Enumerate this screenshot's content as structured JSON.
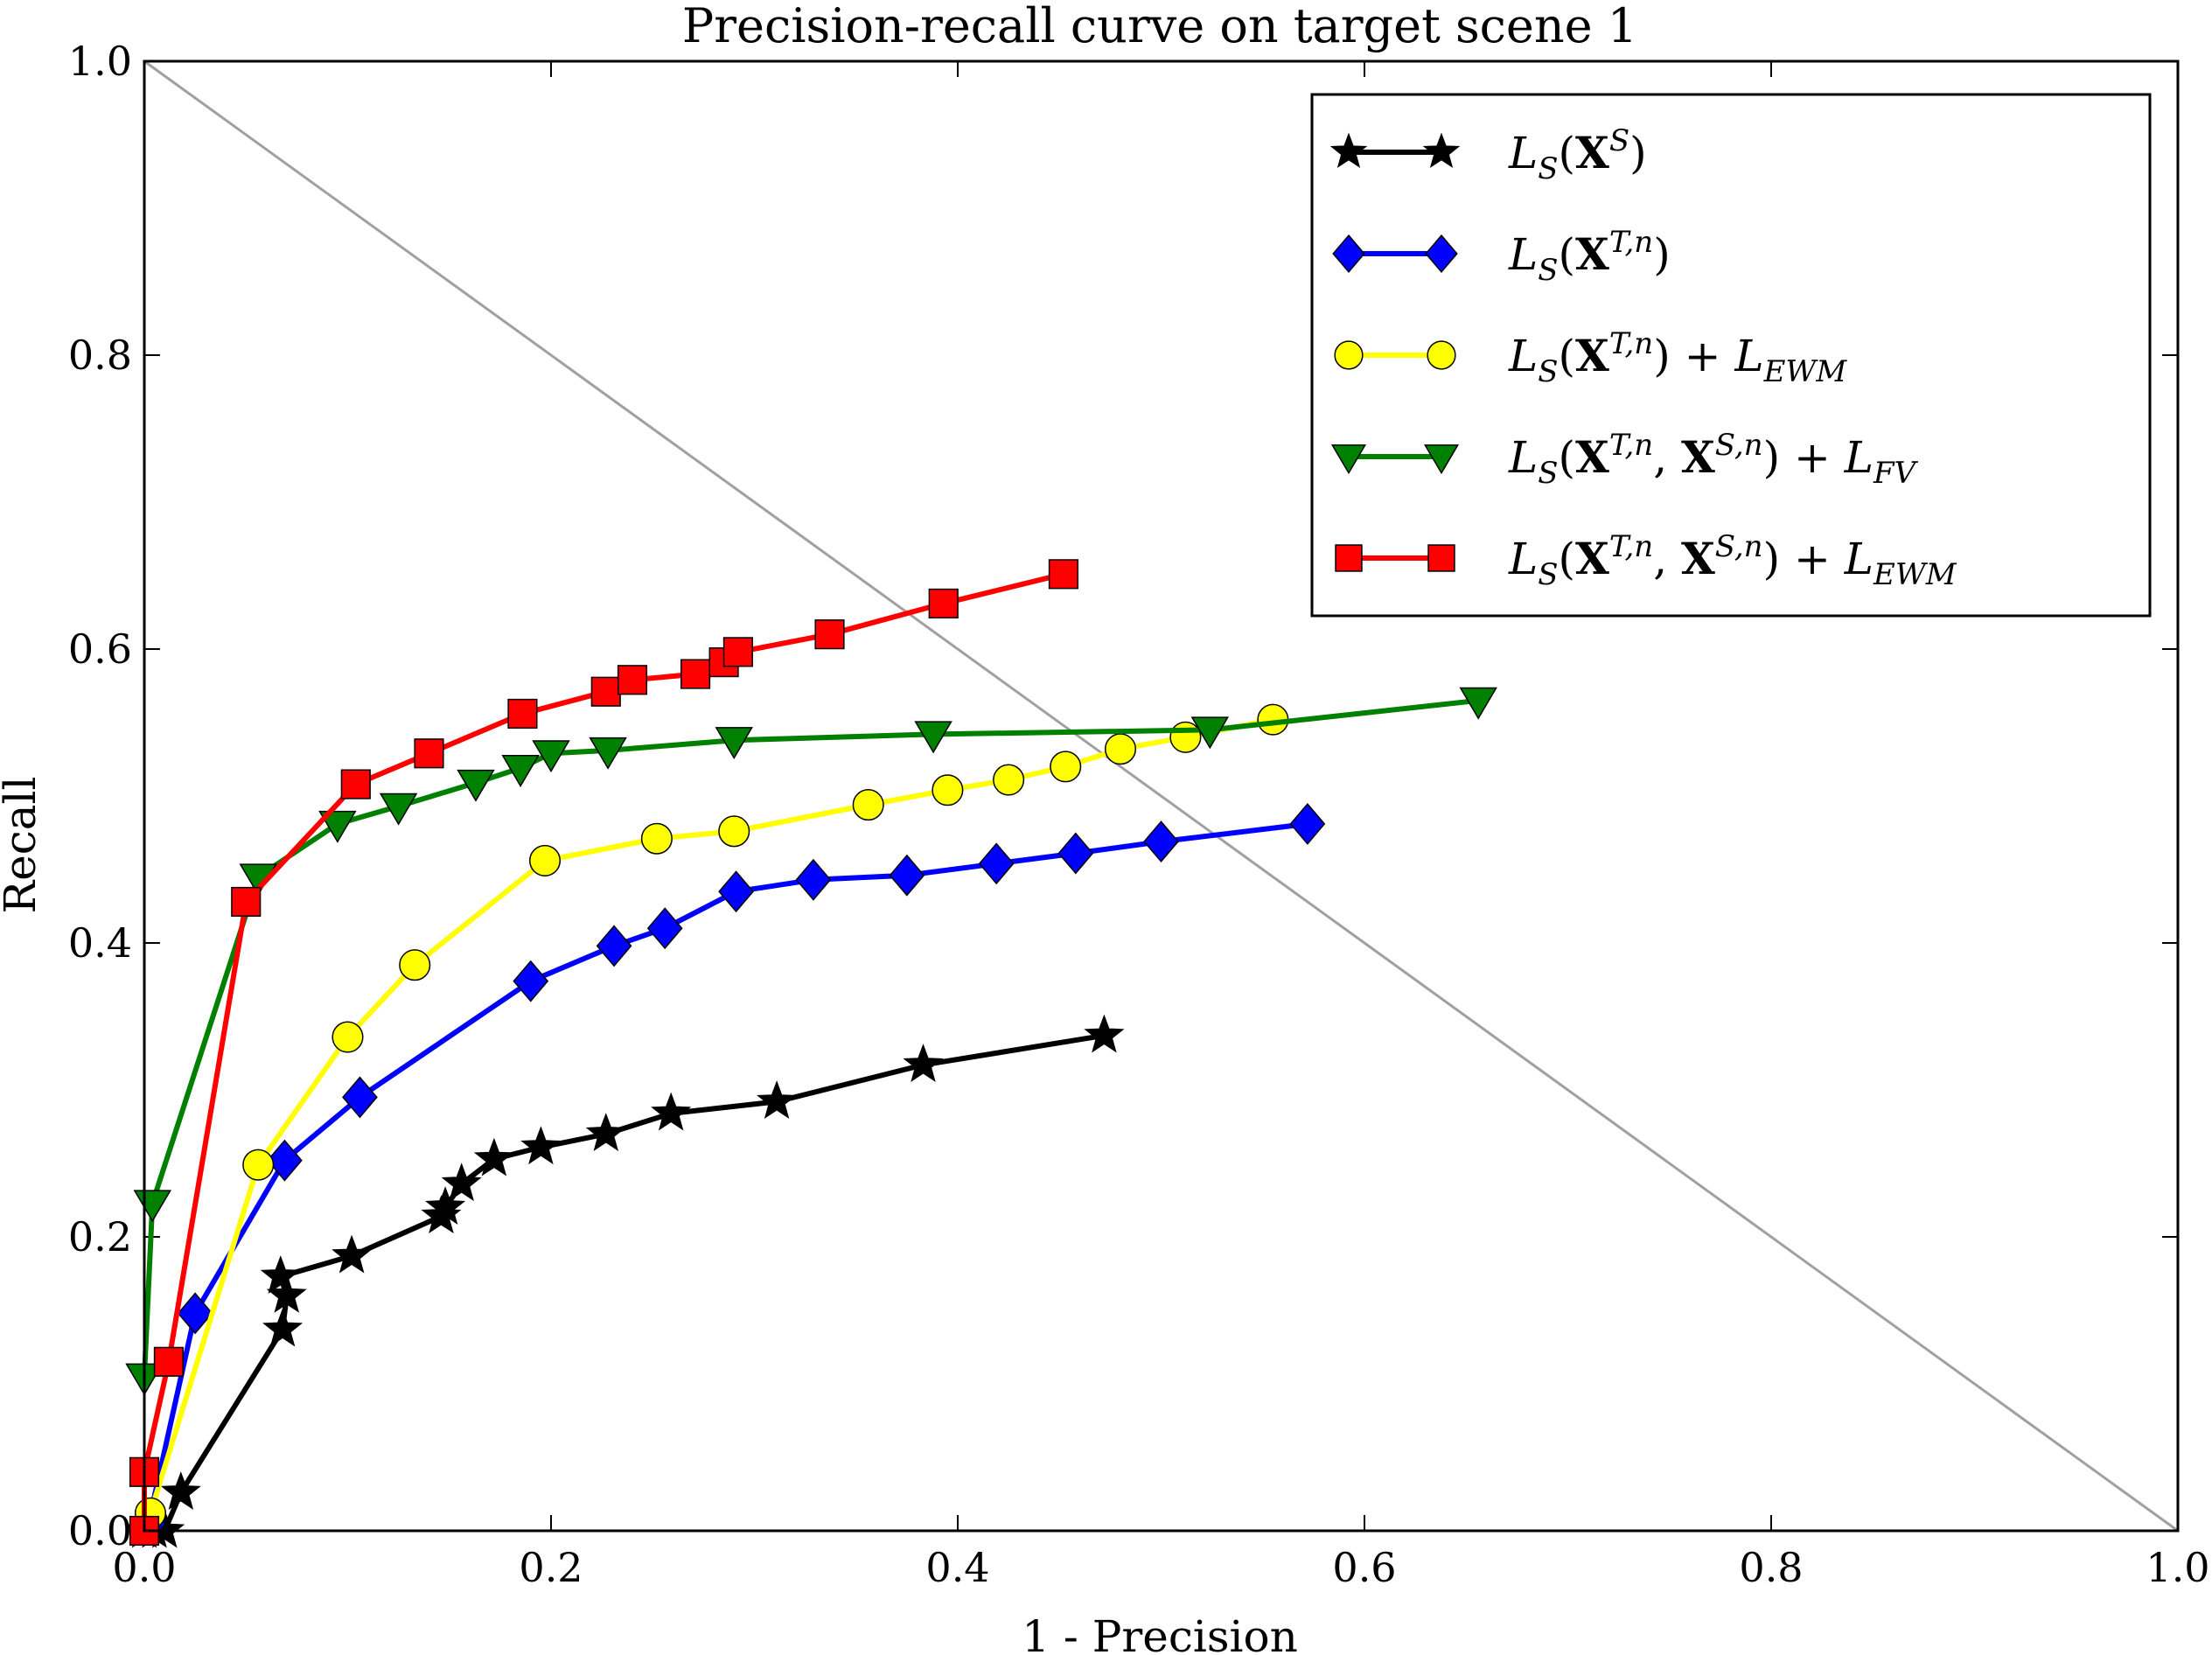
{
  "chart_data": {
    "type": "line",
    "title": "Precision-recall curve on target scene 1",
    "xlabel": "1 - Precision",
    "ylabel": "Recall",
    "xlim": [
      0.0,
      1.0
    ],
    "ylim": [
      0.0,
      1.0
    ],
    "xticks": [
      "0.0",
      "0.2",
      "0.4",
      "0.6",
      "0.8",
      "1.0"
    ],
    "yticks": [
      "0.0",
      "0.2",
      "0.4",
      "0.6",
      "0.8",
      "1.0"
    ],
    "grid": false,
    "legend_position": "top-right",
    "reference_line": {
      "from": [
        0.0,
        1.0
      ],
      "to": [
        1.0,
        0.0
      ],
      "color": "#a0a0a0"
    },
    "series": [
      {
        "name": "L_S(X^S)",
        "color": "#000000",
        "marker": "star",
        "x": [
          0.0,
          0.005,
          0.01,
          0.018,
          0.068,
          0.07,
          0.067,
          0.102,
          0.146,
          0.148,
          0.156,
          0.172,
          0.195,
          0.227,
          0.259,
          0.311,
          0.383,
          0.472
        ],
        "y": [
          0.0,
          0.0,
          0.0,
          0.026,
          0.137,
          0.16,
          0.173,
          0.187,
          0.214,
          0.22,
          0.236,
          0.253,
          0.261,
          0.27,
          0.284,
          0.292,
          0.317,
          0.337
        ]
      },
      {
        "name": "L_S(X^{T,n})",
        "color": "#0000ff",
        "marker": "diamond",
        "x": [
          0.002,
          0.025,
          0.069,
          0.106,
          0.19,
          0.231,
          0.256,
          0.291,
          0.329,
          0.375,
          0.419,
          0.458,
          0.5,
          0.572
        ],
        "y": [
          0.005,
          0.148,
          0.252,
          0.295,
          0.374,
          0.398,
          0.41,
          0.435,
          0.443,
          0.446,
          0.454,
          0.461,
          0.469,
          0.481
        ]
      },
      {
        "name": "L_S(X^{T,n}) + L_{EWM}",
        "color": "#ffff00",
        "marker": "circle",
        "x": [
          0.003,
          0.056,
          0.1,
          0.133,
          0.197,
          0.252,
          0.29,
          0.356,
          0.395,
          0.425,
          0.453,
          0.48,
          0.512,
          0.555
        ],
        "y": [
          0.012,
          0.249,
          0.336,
          0.385,
          0.456,
          0.471,
          0.476,
          0.494,
          0.504,
          0.511,
          0.52,
          0.532,
          0.54,
          0.552
        ]
      },
      {
        "name": "L_S(X^{T,n}, X^{S,n}) + L_{FV}",
        "color": "#008000",
        "marker": "triangle-down",
        "x": [
          0.0,
          0.004,
          0.056,
          0.095,
          0.125,
          0.163,
          0.185,
          0.2,
          0.228,
          0.29,
          0.388,
          0.524,
          0.656
        ],
        "y": [
          0.105,
          0.223,
          0.445,
          0.481,
          0.493,
          0.509,
          0.519,
          0.529,
          0.531,
          0.538,
          0.542,
          0.545,
          0.565
        ]
      },
      {
        "name": "L_S(X^{T,n}, X^{S,n}) + L_{EWM}",
        "color": "#ff0000",
        "marker": "square",
        "x": [
          0.0,
          0.0,
          0.012,
          0.05,
          0.104,
          0.14,
          0.186,
          0.227,
          0.24,
          0.271,
          0.285,
          0.292,
          0.337,
          0.393,
          0.452
        ],
        "y": [
          0.0,
          0.04,
          0.115,
          0.428,
          0.508,
          0.529,
          0.556,
          0.571,
          0.579,
          0.583,
          0.591,
          0.598,
          0.61,
          0.631,
          0.651
        ]
      }
    ]
  },
  "legend": {
    "entries": [
      {
        "base": "L",
        "sub": "S",
        "open": "(",
        "bold1": "X",
        "sup1": "S",
        "sep": "",
        "bold2": "",
        "sup2": "",
        "close": ")",
        "plus": "",
        "extra": "",
        "extra_sub": ""
      },
      {
        "base": "L",
        "sub": "S",
        "open": "(",
        "bold1": "X",
        "sup1": "T,n",
        "sep": "",
        "bold2": "",
        "sup2": "",
        "close": ")",
        "plus": "",
        "extra": "",
        "extra_sub": ""
      },
      {
        "base": "L",
        "sub": "S",
        "open": "(",
        "bold1": "X",
        "sup1": "T,n",
        "sep": "",
        "bold2": "",
        "sup2": "",
        "close": ")",
        "plus": " + ",
        "extra": "L",
        "extra_sub": "EWM"
      },
      {
        "base": "L",
        "sub": "S",
        "open": "(",
        "bold1": "X",
        "sup1": "T,n",
        "sep": ", ",
        "bold2": "X",
        "sup2": "S,n",
        "close": ")",
        "plus": " + ",
        "extra": "L",
        "extra_sub": "FV"
      },
      {
        "base": "L",
        "sub": "S",
        "open": "(",
        "bold1": "X",
        "sup1": "T,n",
        "sep": ", ",
        "bold2": "X",
        "sup2": "S,n",
        "close": ")",
        "plus": " + ",
        "extra": "L",
        "extra_sub": "EWM"
      }
    ]
  }
}
